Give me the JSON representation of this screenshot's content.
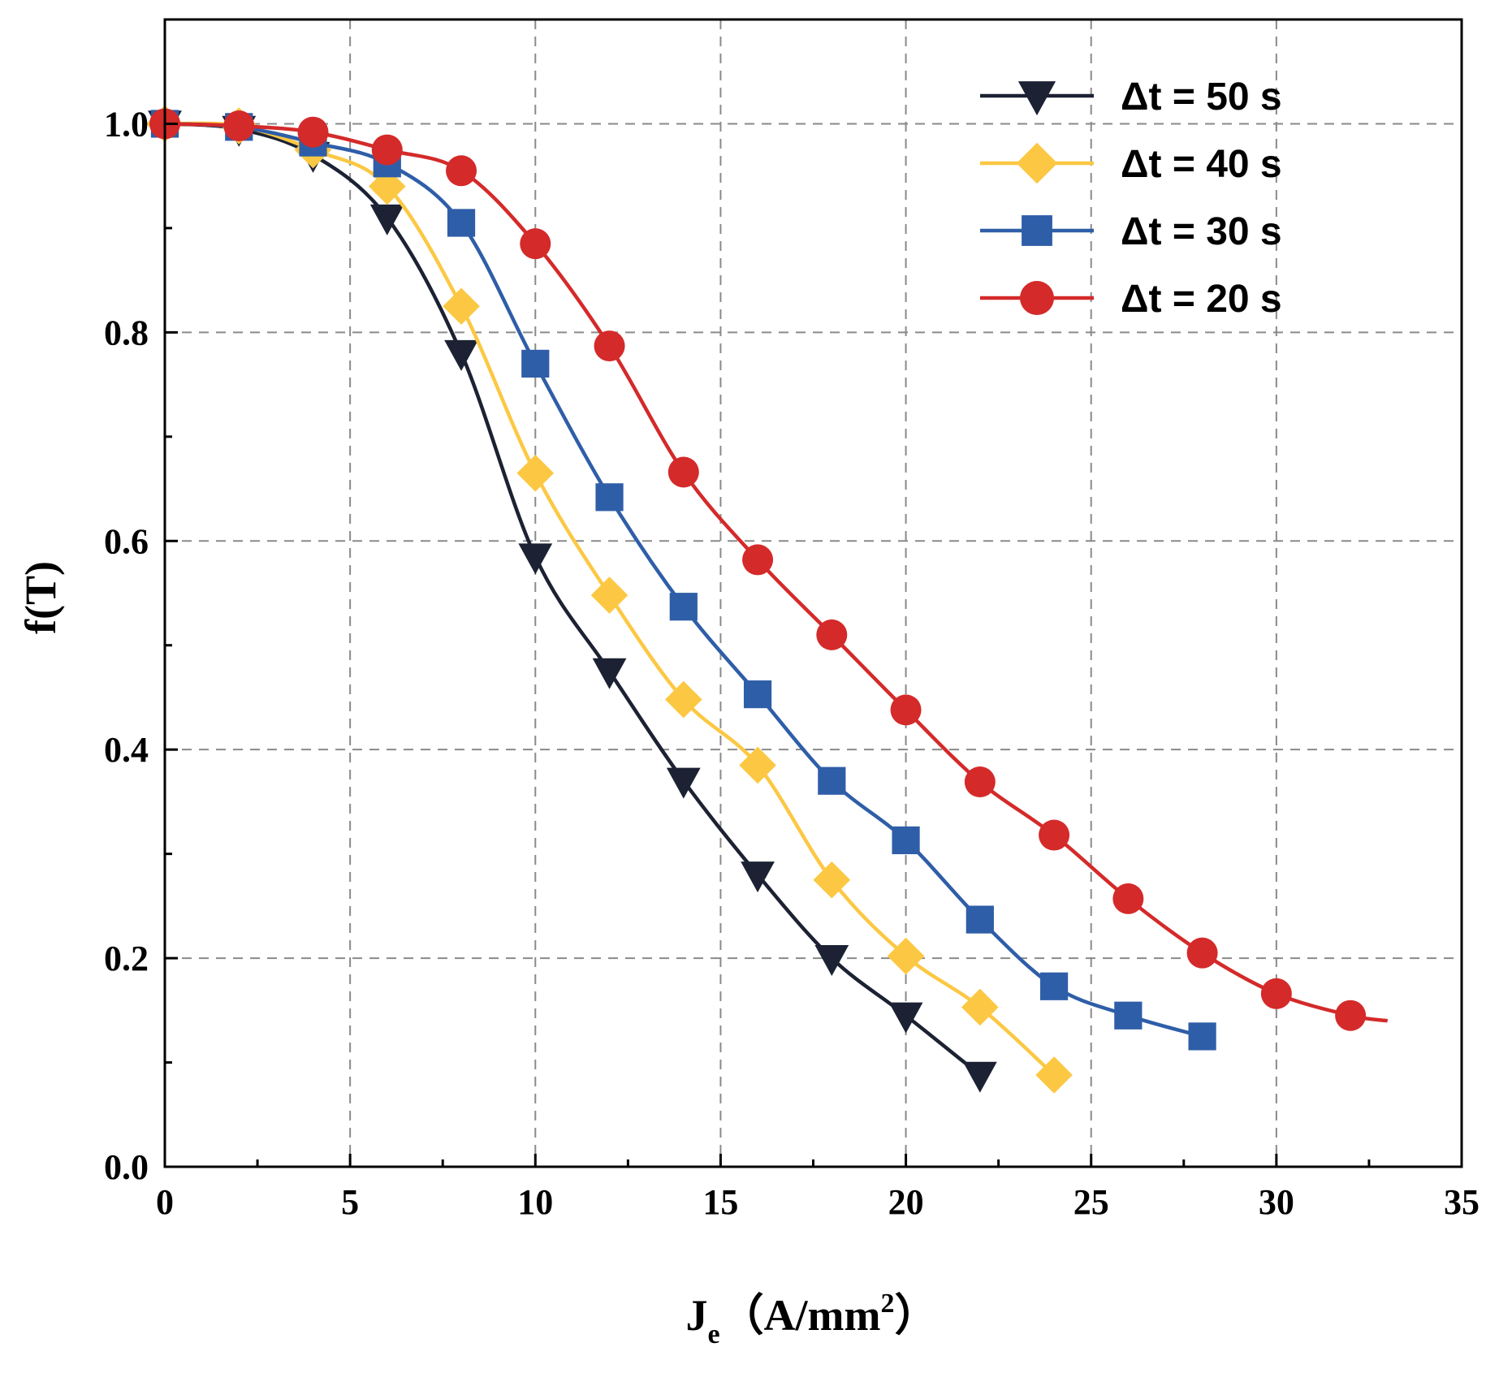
{
  "chart_data": {
    "type": "line",
    "title": "",
    "xlabel": {
      "main": "J",
      "sub": "e",
      "unit_open": "（A/mm",
      "sup": "2",
      "unit_close": "）"
    },
    "ylabel": "f(T)",
    "xlim": [
      0,
      35
    ],
    "ylim": [
      0,
      1.1
    ],
    "xticks": [
      0,
      5,
      10,
      15,
      20,
      25,
      30,
      35
    ],
    "xtick_labels": [
      "0",
      "5",
      "10",
      "15",
      "20",
      "25",
      "30",
      "35"
    ],
    "yticks": [
      0.0,
      0.2,
      0.4,
      0.6,
      0.8,
      1.0
    ],
    "ytick_labels": [
      "0.0",
      "0.2",
      "0.4",
      "0.6",
      "0.8",
      "1.0"
    ],
    "grid": true,
    "legend_position": "top-right",
    "series": [
      {
        "name": "Δt = 50  s",
        "marker": "triangle-down",
        "color": "#1c2233",
        "x": [
          0,
          2,
          4,
          6,
          8,
          10,
          12,
          14,
          16,
          18,
          20,
          22
        ],
        "y": [
          1.0,
          0.995,
          0.97,
          0.91,
          0.78,
          0.585,
          0.475,
          0.37,
          0.28,
          0.2,
          0.145,
          0.088
        ]
      },
      {
        "name": "Δt = 40  s",
        "marker": "diamond",
        "color": "#fcc843",
        "x": [
          0,
          2,
          4,
          6,
          8,
          10,
          12,
          14,
          16,
          18,
          20,
          22,
          24
        ],
        "y": [
          1.0,
          0.998,
          0.975,
          0.94,
          0.825,
          0.665,
          0.548,
          0.448,
          0.385,
          0.275,
          0.202,
          0.153,
          0.088
        ]
      },
      {
        "name": "Δt = 30  s",
        "marker": "square",
        "color": "#2f5ea8",
        "x": [
          0,
          2,
          4,
          6,
          8,
          10,
          12,
          14,
          16,
          18,
          20,
          22,
          24,
          26,
          28
        ],
        "y": [
          1.0,
          0.997,
          0.982,
          0.962,
          0.905,
          0.77,
          0.642,
          0.537,
          0.453,
          0.37,
          0.313,
          0.237,
          0.173,
          0.145,
          0.125
        ]
      },
      {
        "name": "Δt = 20  s",
        "marker": "circle",
        "color": "#d42a2a",
        "x": [
          0,
          2,
          4,
          6,
          8,
          10,
          12,
          14,
          16,
          18,
          20,
          22,
          24,
          26,
          28,
          30,
          32,
          33
        ],
        "y": [
          1.0,
          0.998,
          0.992,
          0.975,
          0.955,
          0.885,
          0.787,
          0.666,
          0.582,
          0.51,
          0.438,
          0.369,
          0.318,
          0.257,
          0.205,
          0.166,
          0.145,
          0.14
        ],
        "marker_x_max": 32
      }
    ]
  }
}
